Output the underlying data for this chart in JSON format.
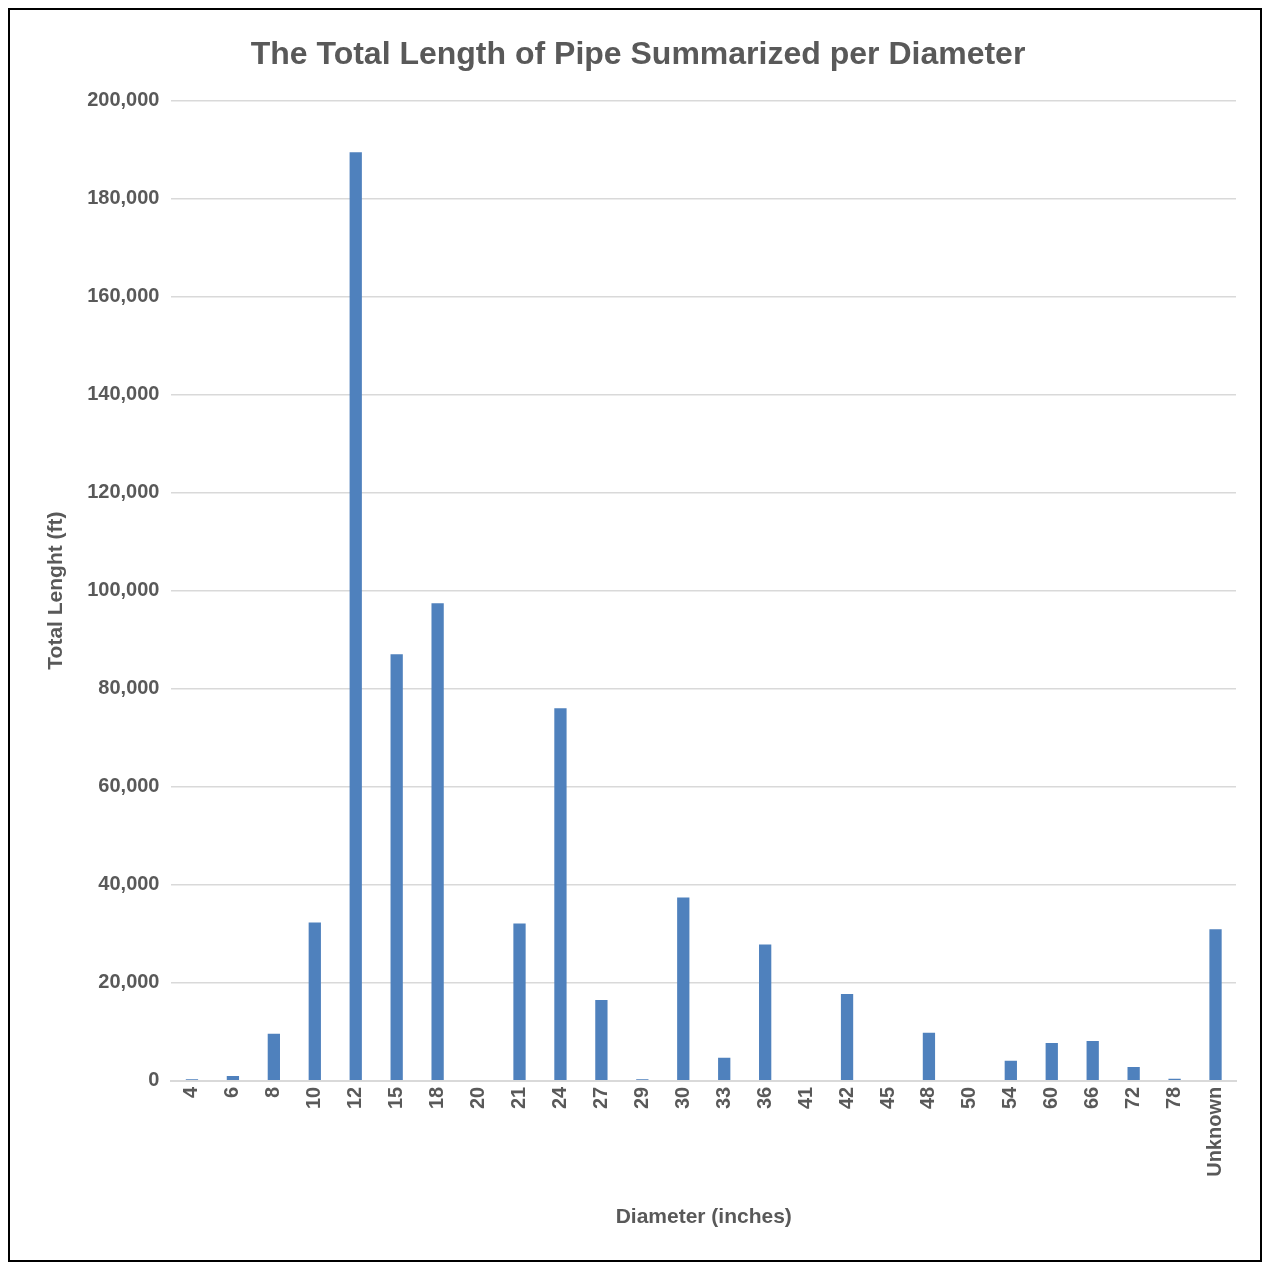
{
  "chart_data": {
    "type": "bar",
    "title": "The Total Length of Pipe Summarized per Diameter",
    "xlabel": "Diameter (inches)",
    "ylabel": "Total Lenght (ft)",
    "categories": [
      "4",
      "6",
      "8",
      "10",
      "12",
      "15",
      "18",
      "20",
      "21",
      "24",
      "27",
      "29",
      "30",
      "33",
      "36",
      "41",
      "42",
      "45",
      "48",
      "50",
      "54",
      "60",
      "66",
      "72",
      "78",
      "Unknown"
    ],
    "values": [
      300,
      1000,
      9600,
      32300,
      189400,
      87000,
      97400,
      0,
      32100,
      76000,
      16500,
      300,
      37400,
      4700,
      27800,
      0,
      17700,
      0,
      9800,
      0,
      4100,
      7700,
      8100,
      2800,
      400,
      30900
    ],
    "color": "#4f81bd",
    "ylim": [
      0,
      200000
    ],
    "yticks": [
      0,
      {
        "value": 20000,
        "label": "20,000"
      },
      {
        "value": 40000,
        "label": "40,000"
      },
      {
        "value": 60000,
        "label": "60,000"
      },
      {
        "value": 80000,
        "label": "80,000"
      },
      {
        "value": 100000,
        "label": "100,000"
      },
      {
        "value": 120000,
        "label": "120,000"
      },
      {
        "value": 140000,
        "label": "140,000"
      },
      {
        "value": 160000,
        "label": "160,000"
      },
      {
        "value": 180000,
        "label": "180,000"
      },
      {
        "value": 200000,
        "label": "200,000"
      }
    ],
    "grid": "y"
  }
}
